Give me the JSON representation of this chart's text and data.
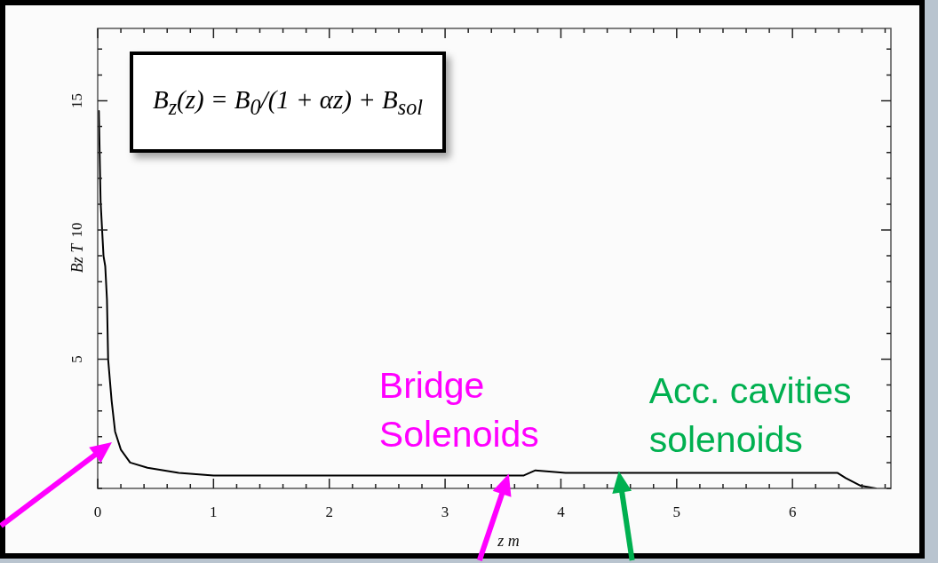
{
  "chart_data": {
    "type": "line",
    "xlabel": "z m",
    "ylabel": "Bz T",
    "x": [
      0.01,
      0.025,
      0.05,
      0.065,
      0.08,
      0.09,
      0.12,
      0.15,
      0.2,
      0.28,
      0.43,
      0.7,
      1,
      2,
      3,
      3.4,
      3.55,
      3.68,
      3.78,
      4.04,
      5,
      6,
      6.39,
      6.46,
      6.59,
      6.72
    ],
    "values": [
      14.6,
      11.1,
      9.0,
      8.6,
      7.3,
      5.0,
      3.4,
      2.2,
      1.5,
      1.0,
      0.8,
      0.6,
      0.5,
      0.5,
      0.5,
      0.5,
      0.5,
      0.5,
      0.7,
      0.6,
      0.6,
      0.6,
      0.6,
      0.4,
      0.1,
      0
    ],
    "color": "#000000",
    "marker": "none",
    "line_style": "solid",
    "xlim": [
      0,
      6.85
    ],
    "ylim": [
      0,
      17.8
    ],
    "xticks": [
      0,
      {
        "value": 0.2,
        "label": null
      },
      {
        "value": 0.4,
        "label": null
      },
      {
        "value": 0.6,
        "label": null
      },
      {
        "value": 0.8,
        "label": null
      },
      1,
      {
        "value": 1.2,
        "label": null
      },
      {
        "value": 1.4,
        "label": null
      },
      {
        "value": 1.6,
        "label": null
      },
      {
        "value": 1.8,
        "label": null
      },
      2,
      {
        "value": 2.2,
        "label": null
      },
      {
        "value": 2.4,
        "label": null
      },
      {
        "value": 2.6,
        "label": null
      },
      {
        "value": 2.8,
        "label": null
      },
      3,
      {
        "value": 3.2,
        "label": null
      },
      {
        "value": 3.4,
        "label": null
      },
      {
        "value": 3.6,
        "label": null
      },
      {
        "value": 3.8,
        "label": null
      },
      4,
      {
        "value": 4.2,
        "label": null
      },
      {
        "value": 4.4,
        "label": null
      },
      {
        "value": 4.6,
        "label": null
      },
      {
        "value": 4.8,
        "label": null
      },
      5,
      {
        "value": 5.2,
        "label": null
      },
      {
        "value": 5.4,
        "label": null
      },
      {
        "value": 5.6,
        "label": null
      },
      {
        "value": 5.8,
        "label": null
      },
      6,
      {
        "value": 6.2,
        "label": null
      },
      {
        "value": 6.4,
        "label": null
      },
      {
        "value": 6.6,
        "label": null
      },
      {
        "value": 6.8,
        "label": null
      }
    ],
    "yticks": [
      {
        "value": 0,
        "label": null
      },
      {
        "value": 1,
        "label": null
      },
      {
        "value": 2,
        "label": null
      },
      {
        "value": 3,
        "label": null
      },
      {
        "value": 4,
        "label": null
      },
      5,
      {
        "value": 6,
        "label": null
      },
      {
        "value": 7,
        "label": null
      },
      {
        "value": 8,
        "label": null
      },
      {
        "value": 9,
        "label": null
      },
      10,
      {
        "value": 11,
        "label": null
      },
      {
        "value": 12,
        "label": null
      },
      {
        "value": 13,
        "label": null
      },
      {
        "value": 14,
        "label": null
      },
      15,
      {
        "value": 16,
        "label": null
      },
      {
        "value": 17,
        "label": null
      }
    ],
    "annotations": [
      "B$_{z}$(z) = B$_{0}$/(1 + αz) + B$_{sol}$",
      {
        "text": "Bridge Solenoids",
        "x": 3.55,
        "y": 0.5
      },
      {
        "text": "Acc. cavities solenoids",
        "x": 4.5,
        "y": 0.6
      }
    ]
  }
}
